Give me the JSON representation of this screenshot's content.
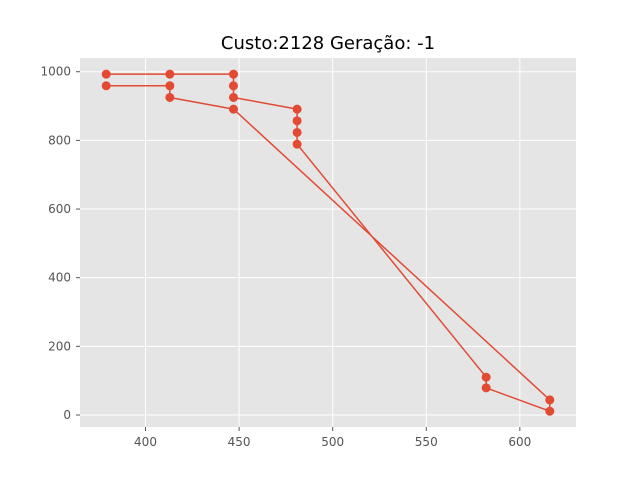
{
  "chart_data": {
    "type": "line",
    "title": "Custo:2128 Geração: -1",
    "xlabel": "",
    "ylabel": "",
    "xlim": [
      365,
      630
    ],
    "ylim": [
      -35,
      1040
    ],
    "x_ticks": [
      400,
      450,
      500,
      550,
      600
    ],
    "y_ticks": [
      0,
      200,
      400,
      600,
      800,
      1000
    ],
    "grid": true,
    "series": [
      {
        "color": "#E24A33",
        "marker": "circle",
        "points": [
          [
            379,
            993
          ],
          [
            413,
            993
          ],
          [
            447,
            993
          ],
          [
            447,
            959
          ],
          [
            447,
            925
          ],
          [
            481,
            891
          ],
          [
            481,
            857
          ],
          [
            481,
            823
          ],
          [
            481,
            789
          ],
          [
            582,
            110
          ],
          [
            582,
            79
          ],
          [
            616,
            11
          ],
          [
            616,
            44
          ],
          [
            447,
            891
          ],
          [
            413,
            925
          ],
          [
            413,
            959
          ],
          [
            379,
            959
          ]
        ]
      }
    ]
  }
}
